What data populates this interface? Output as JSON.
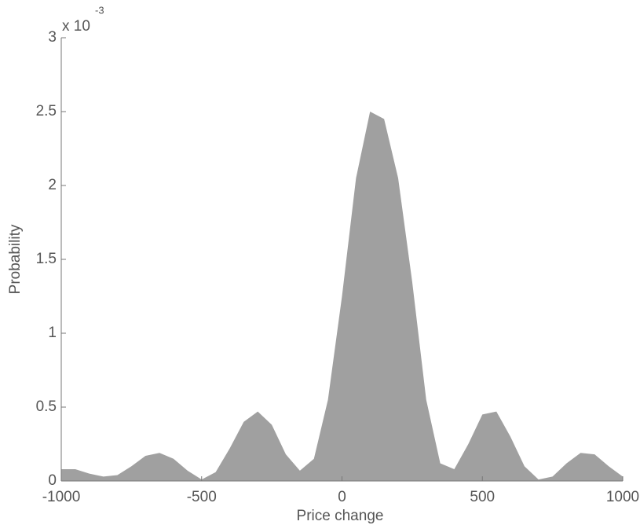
{
  "chart_data": {
    "type": "area",
    "xlabel": "Price change",
    "ylabel": "Probability",
    "y_multiplier": {
      "base": "x 10",
      "exponent": "-3"
    },
    "x": [
      -1000,
      -950,
      -900,
      -850,
      -800,
      -750,
      -700,
      -650,
      -600,
      -550,
      -500,
      -450,
      -400,
      -350,
      -300,
      -250,
      -200,
      -150,
      -100,
      -50,
      0,
      50,
      100,
      150,
      200,
      250,
      300,
      350,
      400,
      450,
      500,
      550,
      600,
      650,
      700,
      750,
      800,
      850,
      900,
      950,
      1000
    ],
    "values": [
      0.08,
      0.08,
      0.05,
      0.03,
      0.04,
      0.1,
      0.17,
      0.19,
      0.15,
      0.07,
      0.01,
      0.06,
      0.22,
      0.4,
      0.47,
      0.38,
      0.18,
      0.07,
      0.15,
      0.55,
      1.25,
      2.05,
      2.5,
      2.45,
      2.05,
      1.35,
      0.55,
      0.12,
      0.08,
      0.25,
      0.45,
      0.47,
      0.3,
      0.1,
      0.01,
      0.03,
      0.12,
      0.19,
      0.18,
      0.1,
      0.03
    ],
    "color": "#a0a0a0",
    "xlim": [
      -1000,
      1000
    ],
    "xticks": [
      -1000,
      -500,
      0,
      500,
      1000
    ],
    "ylim": [
      0,
      3
    ],
    "yticks": [
      0,
      0.5,
      1,
      1.5,
      2,
      2.5,
      3
    ]
  }
}
